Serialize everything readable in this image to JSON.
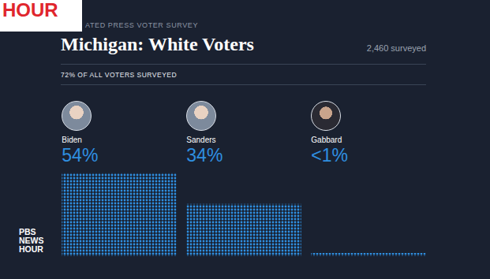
{
  "page": {
    "badge": "HOUR",
    "source": "ATED PRESS VOTER SURVEY",
    "sample": "2,460 surveyed",
    "logo": [
      "PBS",
      "NEWS",
      "HOUR"
    ]
  },
  "chart_data": {
    "type": "bar",
    "title": "Michigan: White Voters",
    "subtitle": "72% OF ALL VOTERS SURVEYED",
    "categories": [
      "Biden",
      "Sanders",
      "Gabbard"
    ],
    "values": [
      54,
      34,
      0.5
    ],
    "value_labels": [
      "54%",
      "34%",
      "<1%"
    ],
    "color": "#2f8fe0",
    "data_labels": true,
    "grid": false,
    "tick_labels": false
  }
}
